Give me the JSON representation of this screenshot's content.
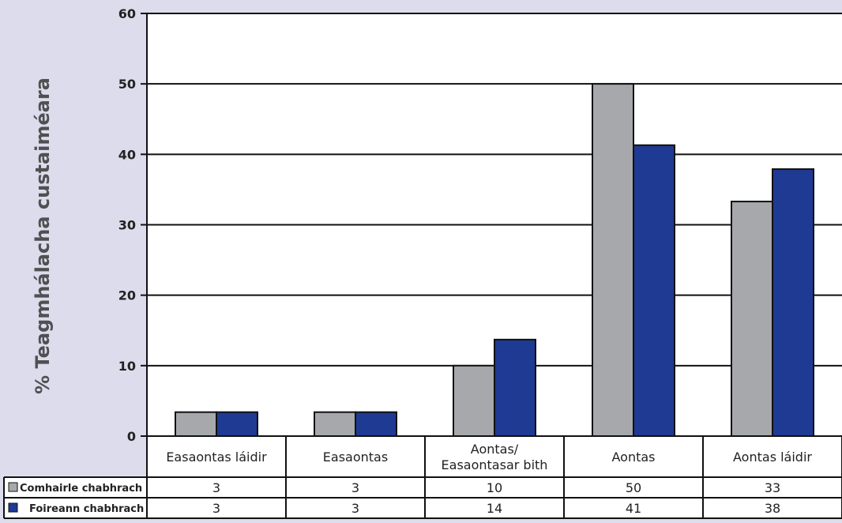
{
  "chart_data": {
    "type": "bar",
    "ylabel": "% Teagmhálacha custaiméara",
    "ylim": [
      0,
      60
    ],
    "yticks": [
      0,
      10,
      20,
      30,
      40,
      50,
      60
    ],
    "categories": [
      [
        "Easaontas láidir"
      ],
      [
        "Easaontas"
      ],
      [
        "Aontas/",
        "Easaontasar bith"
      ],
      [
        "Aontas"
      ],
      [
        "Aontas láidir"
      ]
    ],
    "series": [
      {
        "name": "Comhairle chabhrach",
        "color": "#a6a8ab",
        "values": [
          3.4,
          3.4,
          10,
          50,
          33.3
        ],
        "labels": [
          "3",
          "3",
          "10",
          "50",
          "33"
        ]
      },
      {
        "name": "Foireann chabhrach",
        "color": "#1f3a93",
        "values": [
          3.4,
          3.4,
          13.7,
          41.3,
          37.9
        ],
        "labels": [
          "3",
          "3",
          "14",
          "41",
          "38"
        ]
      }
    ],
    "grid": true,
    "legend": "data-table-rows"
  }
}
